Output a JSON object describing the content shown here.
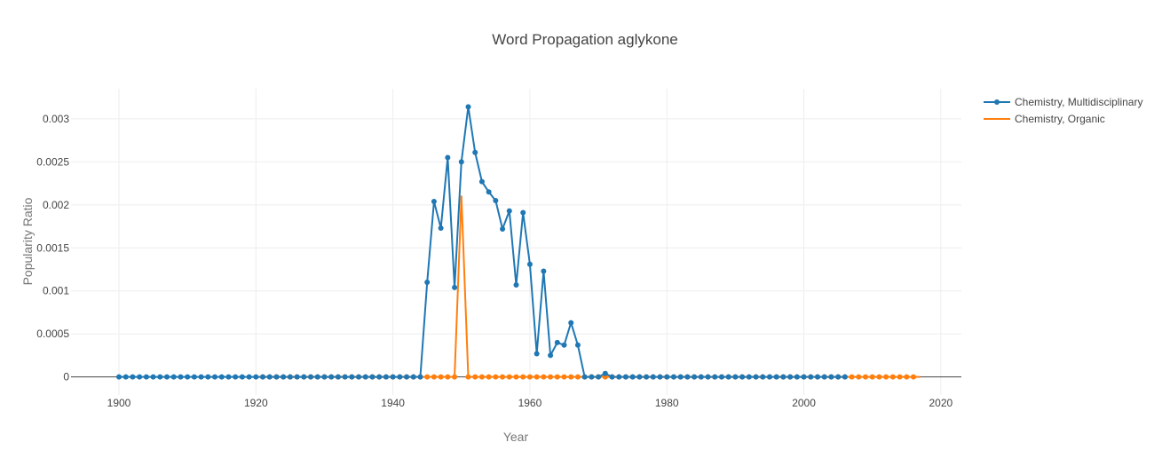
{
  "chart_data": {
    "type": "line",
    "title": "Word Propagation aglykone",
    "xlabel": "Year",
    "ylabel": "Popularity Ratio",
    "xlim": [
      1893,
      2023
    ],
    "ylim": [
      -0.00021,
      0.00335
    ],
    "x_ticks": [
      1900,
      1920,
      1940,
      1960,
      1980,
      2000,
      2020
    ],
    "x_tick_labels": [
      "1900",
      "1920",
      "1940",
      "1960",
      "1980",
      "2000",
      "2020"
    ],
    "y_ticks": [
      0,
      0.0005,
      0.001,
      0.0015,
      0.002,
      0.0025,
      0.003
    ],
    "y_tick_labels": [
      "0",
      "0.0005",
      "0.001",
      "0.0015",
      "0.002",
      "0.0025",
      "0.003"
    ],
    "grid": true,
    "legend_position": "top-right",
    "series": [
      {
        "name": "Chemistry, Multidisciplinary",
        "color": "#1f77b4",
        "markers": true,
        "x_start": 1900,
        "values": [
          0,
          0,
          0,
          0,
          0,
          0,
          0,
          0,
          0,
          0,
          0,
          0,
          0,
          0,
          0,
          0,
          0,
          0,
          0,
          0,
          0,
          0,
          0,
          0,
          0,
          0,
          0,
          0,
          0,
          0,
          0,
          0,
          0,
          0,
          0,
          0,
          0,
          0,
          0,
          0,
          0,
          0,
          0,
          0,
          0,
          0.0011,
          0.00204,
          0.00173,
          0.00255,
          0.00104,
          0.0025,
          0.00314,
          0.00261,
          0.00227,
          0.00215,
          0.00205,
          0.00172,
          0.00193,
          0.00107,
          0.00191,
          0.00131,
          0.00027,
          0.00123,
          0.00025,
          0.0004,
          0.00037,
          0.00063,
          0.00037,
          0,
          0,
          0,
          4e-05,
          0,
          0,
          0,
          0,
          0,
          0,
          0,
          0,
          0,
          0,
          0,
          0,
          0,
          0,
          0,
          0,
          0,
          0,
          0,
          0,
          0,
          0,
          0,
          0,
          0,
          0,
          0,
          0,
          0,
          0,
          0,
          0,
          0,
          0,
          0
        ]
      },
      {
        "name": "Chemistry, Organic",
        "color": "#ff7f0e",
        "markers_from": 1921,
        "markers_to": 2016,
        "x_start": 1921,
        "values": [
          0,
          0,
          0,
          0,
          0,
          0,
          0,
          0,
          0,
          0,
          0,
          0,
          0,
          0,
          0,
          0,
          0,
          0,
          0,
          0,
          0,
          0,
          0,
          0,
          0,
          0,
          0,
          0,
          0,
          0.0021,
          0,
          0,
          0,
          0,
          0,
          0,
          0,
          0,
          0,
          0,
          0,
          0,
          0,
          0,
          0,
          0,
          0,
          0,
          0,
          0,
          0,
          0,
          0,
          0,
          0,
          0,
          0,
          0,
          0,
          0,
          0,
          0,
          0,
          0,
          0,
          0,
          0,
          0,
          0,
          0,
          0,
          0,
          0,
          0,
          0,
          0,
          0,
          0,
          0,
          0,
          0,
          0,
          0,
          0,
          0,
          0,
          0,
          0,
          0,
          0,
          0,
          0,
          0,
          0,
          0,
          0,
          0
        ]
      }
    ]
  }
}
